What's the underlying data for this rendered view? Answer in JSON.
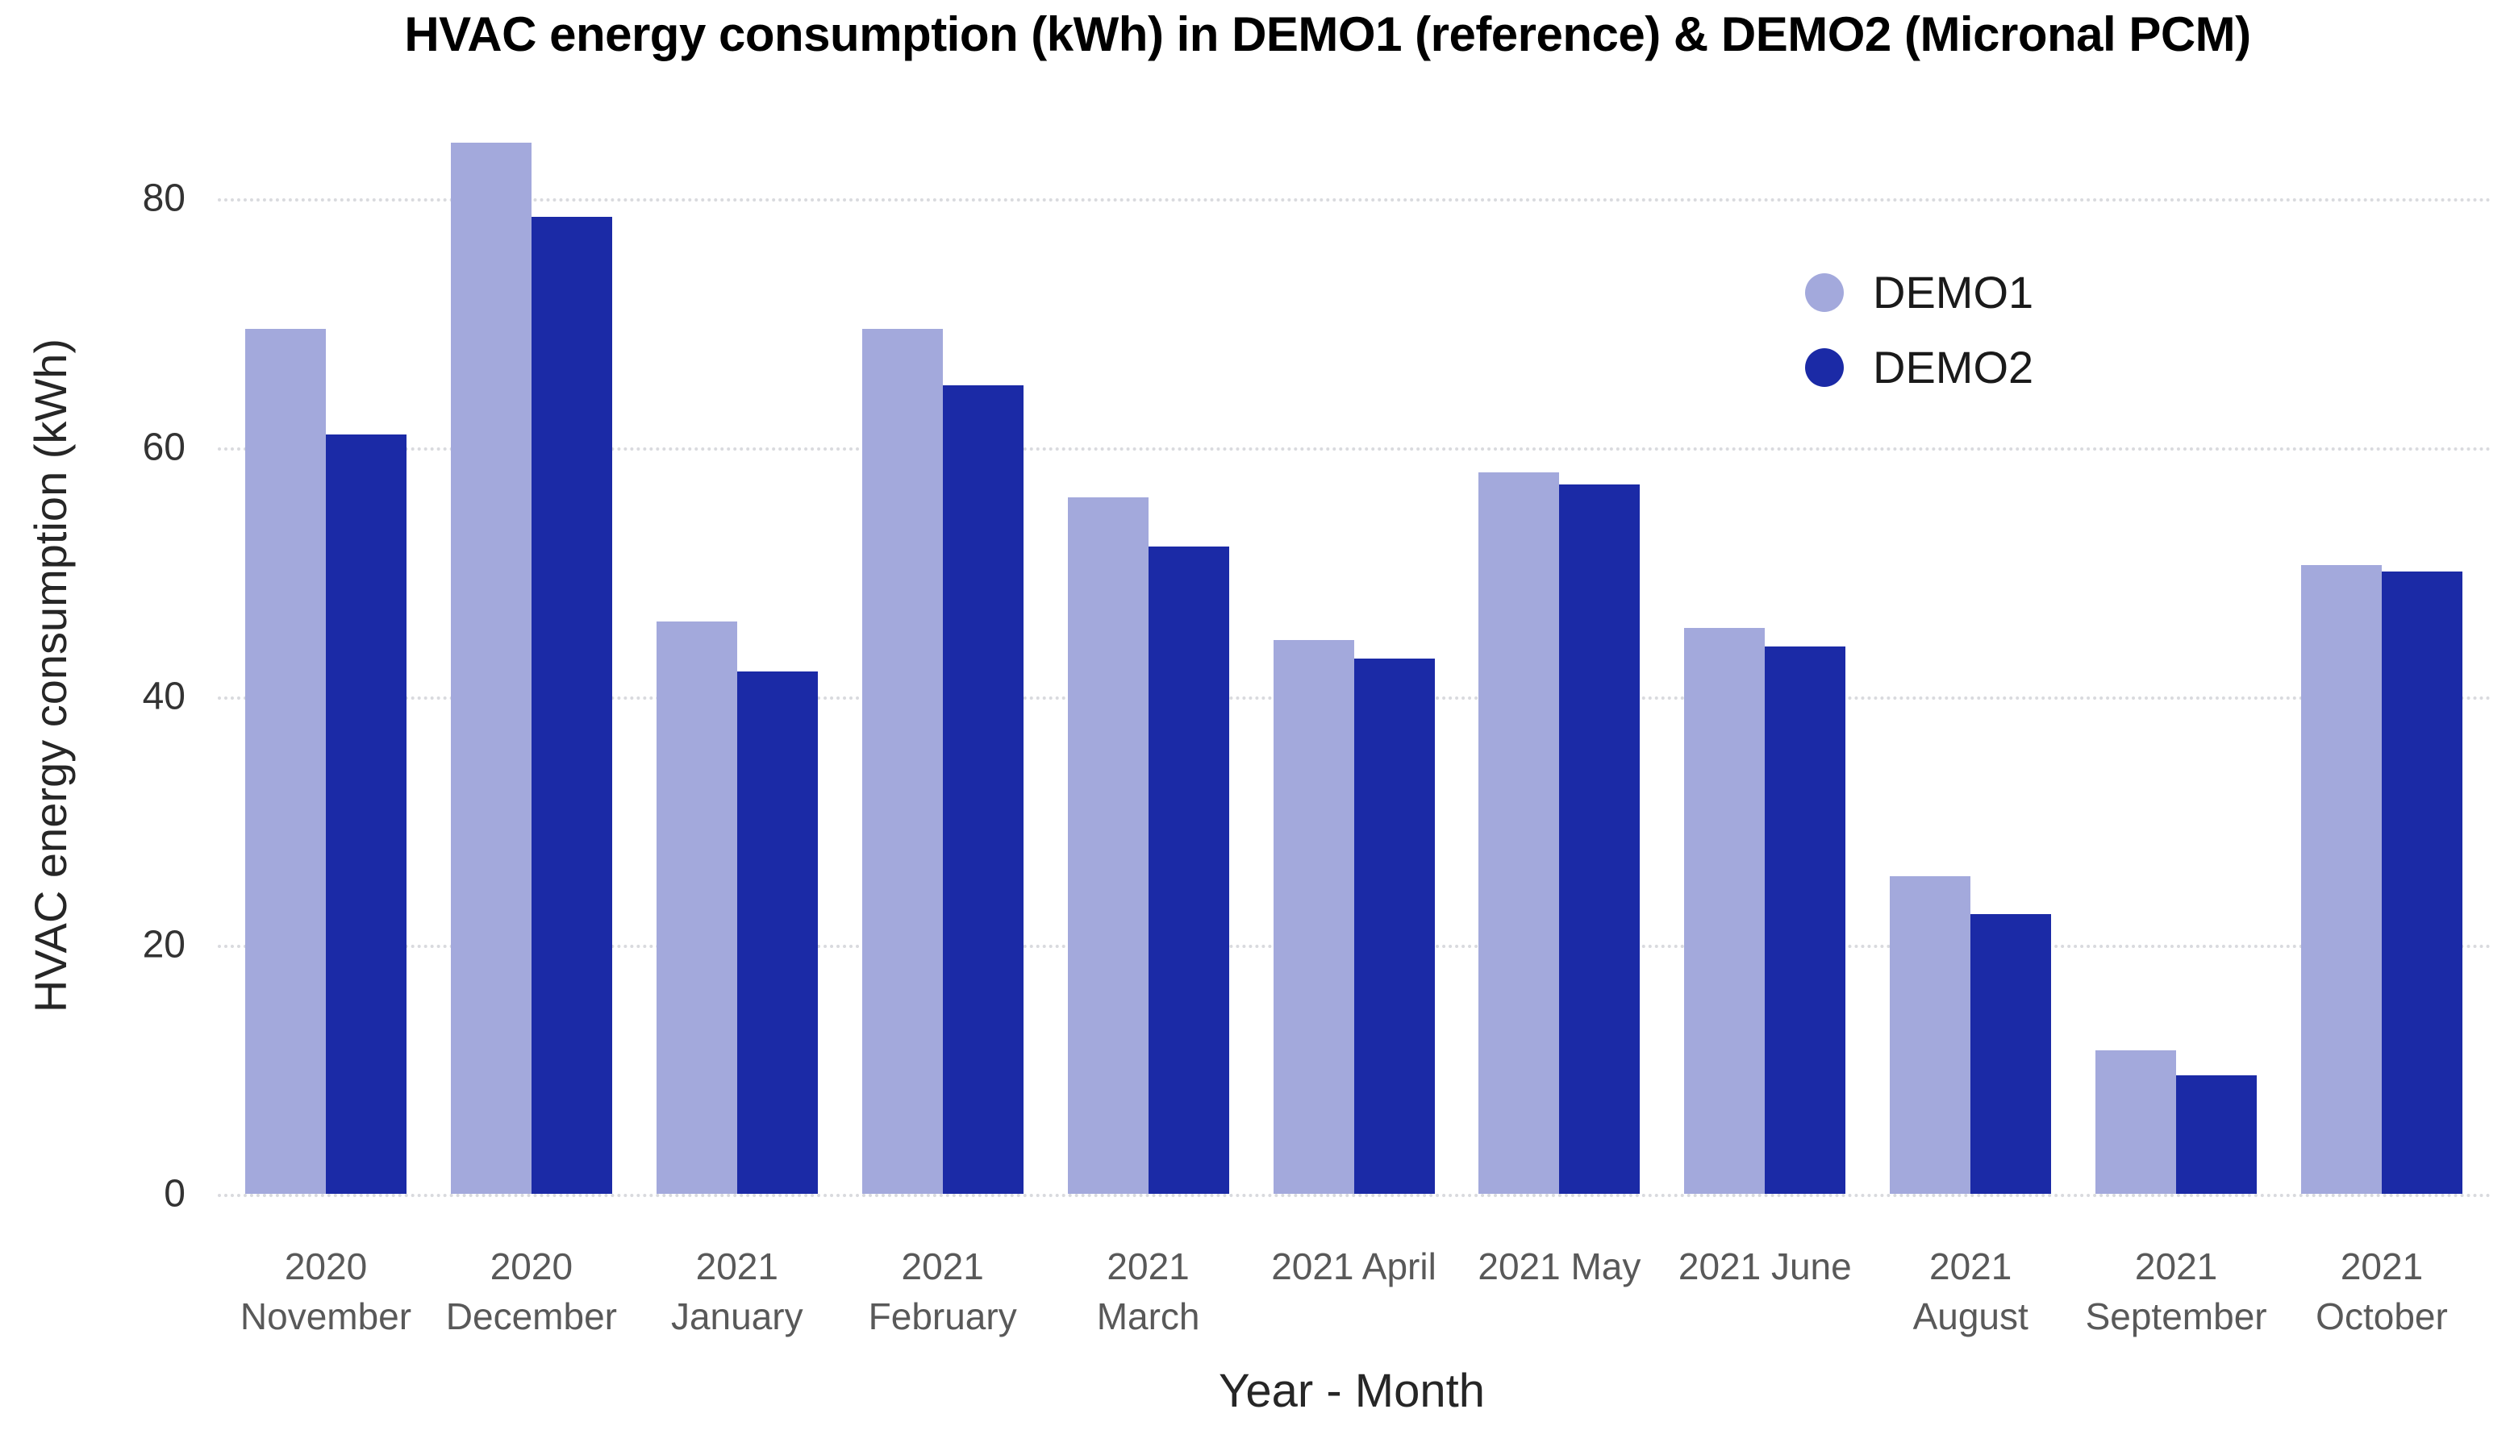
{
  "chart_data": {
    "type": "bar",
    "title": "HVAC energy consumption (kWh) in DEMO1 (reference) & DEMO2 (Micronal PCM)",
    "xlabel": "Year - Month",
    "ylabel": "HVAC energy consumption (kWh)",
    "categories": [
      "2020 November",
      "2020 December",
      "2021 January",
      "2021 February",
      "2021 March",
      "2021 April",
      "2021 May",
      "2021 June",
      "2021 August",
      "2021 September",
      "2021 October"
    ],
    "category_label_lines": [
      [
        "2020",
        "November"
      ],
      [
        "2020",
        "December"
      ],
      [
        "2021",
        "January"
      ],
      [
        "2021",
        "February"
      ],
      [
        "2021",
        "March"
      ],
      [
        "2021 April"
      ],
      [
        "2021 May"
      ],
      [
        "2021 June"
      ],
      [
        "2021",
        "August"
      ],
      [
        "2021",
        "September"
      ],
      [
        "2021",
        "October"
      ]
    ],
    "series": [
      {
        "name": "DEMO1",
        "color": "#a3a9dc",
        "values": [
          69.5,
          84.5,
          46,
          69.5,
          56,
          44.5,
          58,
          45.5,
          25.5,
          11.5,
          50.5
        ]
      },
      {
        "name": "DEMO2",
        "color": "#1b2aa6",
        "values": [
          61,
          78.5,
          42,
          65,
          52,
          43,
          57,
          44,
          22.5,
          9.5,
          50
        ]
      }
    ],
    "ylim": [
      0,
      85
    ],
    "yticks": [
      0,
      20,
      40,
      60,
      80
    ],
    "grid": "horizontal dotted",
    "gridline_color": "#d9dade",
    "legend_position": "upper right",
    "tick_label_color": "#595959",
    "axis_title_color": "#262626"
  }
}
